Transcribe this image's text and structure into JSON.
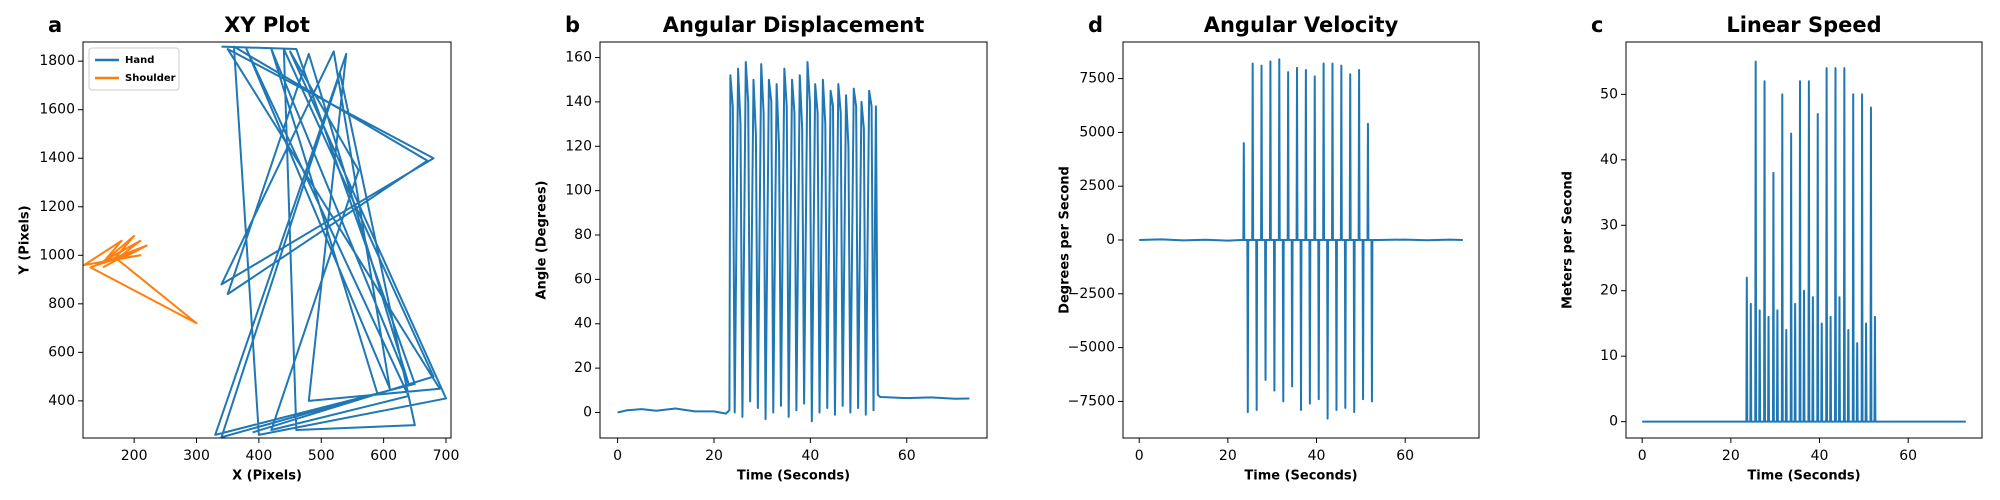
{
  "chart_data": [
    {
      "type": "line",
      "panel_label": "a",
      "title": "XY Plot",
      "xlabel": "X (Pixels)",
      "ylabel": "Y (Pixels)",
      "xlim": [
        118,
        708
      ],
      "ylim": [
        247,
        1879
      ],
      "xticks": [
        200,
        300,
        400,
        500,
        600,
        700
      ],
      "yticks": [
        400,
        600,
        800,
        1000,
        1200,
        1400,
        1600,
        1800
      ],
      "legend": "upper left",
      "series": [
        {
          "name": "Hand",
          "color": "#1f77b4",
          "x": [
            340,
            460,
            650,
            330,
            540,
            480,
            690,
            350,
            680,
            340,
            520,
            610,
            380,
            640,
            420,
            560,
            450,
            700,
            400,
            360,
            670,
            350,
            480,
            640,
            420,
            590,
            340,
            530,
            650,
            460,
            440,
            680,
            390
          ],
          "values": [
            1860,
            1850,
            470,
            260,
            1830,
            400,
            450,
            1850,
            1400,
            880,
            1840,
            450,
            1850,
            420,
            280,
            1350,
            1840,
            410,
            260,
            1860,
            1390,
            840,
            1830,
            470,
            1850,
            430,
            250,
            1750,
            300,
            280,
            1850,
            500,
            270
          ]
        },
        {
          "name": "Shoulder",
          "color": "#ff7f0e",
          "x": [
            150,
            200,
            170,
            210,
            140,
            190,
            220,
            130,
            300,
            170,
            200,
            150,
            180,
            120,
            210,
            160
          ],
          "values": [
            950,
            1020,
            980,
            1060,
            960,
            1000,
            1040,
            950,
            720,
            990,
            1080,
            970,
            1060,
            960,
            1000,
            980
          ]
        }
      ]
    },
    {
      "type": "line",
      "panel_label": "b",
      "title": "Angular Displacement",
      "xlabel": "Time (Seconds)",
      "ylabel": "Angle (Degrees)",
      "xlim": [
        -3.65,
        76.65
      ],
      "ylim": [
        -11.5,
        167
      ],
      "xticks": [
        0,
        20,
        40,
        60
      ],
      "yticks": [
        0,
        20,
        40,
        60,
        80,
        100,
        120,
        140,
        160
      ],
      "series": [
        {
          "color": "#1f77b4",
          "x": [
            0,
            2,
            5,
            8,
            12,
            16,
            20,
            22.5,
            23.2,
            23.4,
            23.9,
            24.3,
            25.0,
            25.5,
            25.9,
            26.6,
            27.1,
            27.5,
            28.2,
            28.7,
            29.1,
            29.8,
            30.3,
            30.7,
            31.4,
            31.9,
            32.3,
            33.0,
            33.5,
            33.9,
            34.6,
            35.1,
            35.5,
            36.2,
            36.7,
            37.1,
            37.8,
            38.3,
            38.7,
            39.4,
            39.9,
            40.3,
            41.0,
            41.5,
            41.9,
            42.6,
            43.1,
            43.5,
            44.2,
            44.7,
            45.1,
            45.8,
            46.3,
            46.7,
            47.4,
            47.9,
            48.3,
            49.0,
            49.5,
            49.9,
            50.6,
            51.1,
            51.5,
            52.2,
            52.7,
            53.1,
            53.6,
            54.0,
            54.5,
            60,
            65,
            70,
            73
          ],
          "values": [
            0,
            1,
            1.5,
            0.8,
            1.8,
            0.5,
            0.5,
            -0.5,
            1,
            152,
            138,
            0,
            155,
            130,
            -2,
            158,
            140,
            5,
            150,
            125,
            2,
            157,
            135,
            -3,
            150,
            140,
            0,
            148,
            120,
            3,
            155,
            138,
            -2,
            150,
            135,
            1,
            152,
            128,
            4,
            158,
            140,
            -4,
            148,
            135,
            0,
            150,
            130,
            2,
            145,
            138,
            -1,
            148,
            135,
            3,
            143,
            120,
            0,
            146,
            138,
            2,
            140,
            128,
            -1,
            145,
            138,
            1,
            138,
            8,
            7,
            6.5,
            6.8,
            6.2,
            6.3
          ]
        }
      ]
    },
    {
      "type": "line",
      "panel_label": "d",
      "title": "Angular Velocity",
      "xlabel": "Time (Seconds)",
      "ylabel": "Degrees per Second",
      "xlim": [
        -3.65,
        76.65
      ],
      "ylim": [
        -9200,
        9200
      ],
      "xticks": [
        0,
        20,
        40,
        60
      ],
      "yticks": [
        {
          "value": -7500,
          "label": "−7500"
        },
        {
          "value": -5000,
          "label": "−5000"
        },
        {
          "value": -2500,
          "label": "−2500"
        },
        0,
        2500,
        5000,
        7500
      ],
      "series": [
        {
          "color": "#1f77b4",
          "x": [
            0,
            5,
            10,
            15,
            20,
            23,
            23.5,
            23.6,
            23.7,
            24.4,
            24.5,
            24.6,
            25.5,
            25.6,
            25.7,
            26.4,
            26.5,
            26.6,
            27.5,
            27.6,
            27.7,
            28.4,
            28.5,
            28.6,
            29.5,
            29.6,
            29.7,
            30.4,
            30.5,
            30.6,
            31.5,
            31.6,
            31.7,
            32.4,
            32.5,
            32.6,
            33.5,
            33.6,
            33.7,
            34.4,
            34.5,
            34.6,
            35.5,
            35.6,
            35.7,
            36.4,
            36.5,
            36.6,
            37.5,
            37.6,
            37.7,
            38.4,
            38.5,
            38.6,
            39.5,
            39.6,
            39.7,
            40.4,
            40.5,
            40.6,
            41.5,
            41.6,
            41.7,
            42.4,
            42.5,
            42.6,
            43.5,
            43.6,
            43.7,
            44.4,
            44.5,
            44.6,
            45.5,
            45.6,
            45.7,
            46.4,
            46.5,
            46.6,
            47.5,
            47.6,
            47.7,
            48.4,
            48.5,
            48.6,
            49.5,
            49.6,
            49.7,
            50.4,
            50.5,
            50.6,
            51.5,
            51.6,
            51.7,
            52.4,
            52.5,
            52.6,
            54,
            60,
            65,
            70,
            73
          ],
          "values": [
            0,
            30,
            -20,
            10,
            -30,
            0,
            0,
            4500,
            0,
            0,
            -8000,
            0,
            0,
            8200,
            0,
            0,
            -7900,
            0,
            0,
            8100,
            0,
            0,
            -6500,
            0,
            0,
            8300,
            0,
            0,
            -7000,
            0,
            0,
            8400,
            0,
            0,
            -7500,
            0,
            0,
            7800,
            0,
            0,
            -6800,
            0,
            0,
            8000,
            0,
            0,
            -7900,
            0,
            0,
            7900,
            0,
            0,
            -7600,
            0,
            0,
            7600,
            0,
            0,
            -7400,
            0,
            0,
            8200,
            0,
            0,
            -8300,
            0,
            0,
            8200,
            0,
            0,
            -7900,
            0,
            0,
            8100,
            0,
            0,
            -7800,
            0,
            0,
            7700,
            0,
            0,
            -8000,
            0,
            0,
            7900,
            0,
            0,
            -7400,
            0,
            0,
            5400,
            0,
            0,
            -7500,
            0,
            0,
            20,
            -10,
            15,
            0
          ]
        }
      ]
    },
    {
      "type": "line",
      "panel_label": "c",
      "title": "Linear Speed",
      "xlabel": "Time (Seconds)",
      "ylabel": "Meters per Second",
      "xlim": [
        -3.65,
        76.65
      ],
      "ylim": [
        -2.5,
        58
      ],
      "xticks": [
        0,
        20,
        40,
        60
      ],
      "yticks": [
        0,
        10,
        20,
        30,
        40,
        50
      ],
      "series": [
        {
          "color": "#1f77b4",
          "x": [
            0,
            10,
            20,
            23,
            23.5,
            23.6,
            23.7,
            24.4,
            24.5,
            24.6,
            25.5,
            25.6,
            25.7,
            26.4,
            26.5,
            26.6,
            27.5,
            27.6,
            27.7,
            28.4,
            28.5,
            28.6,
            29.5,
            29.6,
            29.7,
            30.4,
            30.5,
            30.6,
            31.5,
            31.6,
            31.7,
            32.4,
            32.5,
            32.6,
            33.5,
            33.6,
            33.7,
            34.4,
            34.5,
            34.6,
            35.5,
            35.6,
            35.7,
            36.4,
            36.5,
            36.6,
            37.5,
            37.6,
            37.7,
            38.4,
            38.5,
            38.6,
            39.5,
            39.6,
            39.7,
            40.4,
            40.5,
            40.6,
            41.5,
            41.6,
            41.7,
            42.4,
            42.5,
            42.6,
            43.5,
            43.6,
            43.7,
            44.4,
            44.5,
            44.6,
            45.5,
            45.6,
            45.7,
            46.4,
            46.5,
            46.6,
            47.5,
            47.6,
            47.7,
            48.4,
            48.5,
            48.6,
            49.5,
            49.6,
            49.7,
            50.4,
            50.5,
            50.6,
            51.5,
            51.6,
            51.7,
            52.4,
            52.5,
            52.6,
            54,
            60,
            73
          ],
          "values": [
            0,
            0,
            0,
            0,
            0,
            22,
            0,
            0,
            18,
            0,
            0,
            55,
            0,
            0,
            17,
            0,
            0,
            52,
            0,
            0,
            16,
            0,
            0,
            38,
            0,
            0,
            17,
            0,
            0,
            50,
            0,
            0,
            14,
            0,
            0,
            44,
            0,
            0,
            18,
            0,
            0,
            52,
            0,
            0,
            20,
            0,
            0,
            52,
            0,
            0,
            19,
            0,
            0,
            47,
            0,
            0,
            15,
            0,
            0,
            54,
            0,
            0,
            16,
            0,
            0,
            54,
            0,
            0,
            19,
            0,
            0,
            54,
            0,
            0,
            14,
            0,
            0,
            50,
            0,
            0,
            12,
            0,
            0,
            50,
            0,
            0,
            15,
            0,
            0,
            48,
            0,
            0,
            16,
            0,
            0,
            0,
            0
          ]
        }
      ]
    }
  ]
}
